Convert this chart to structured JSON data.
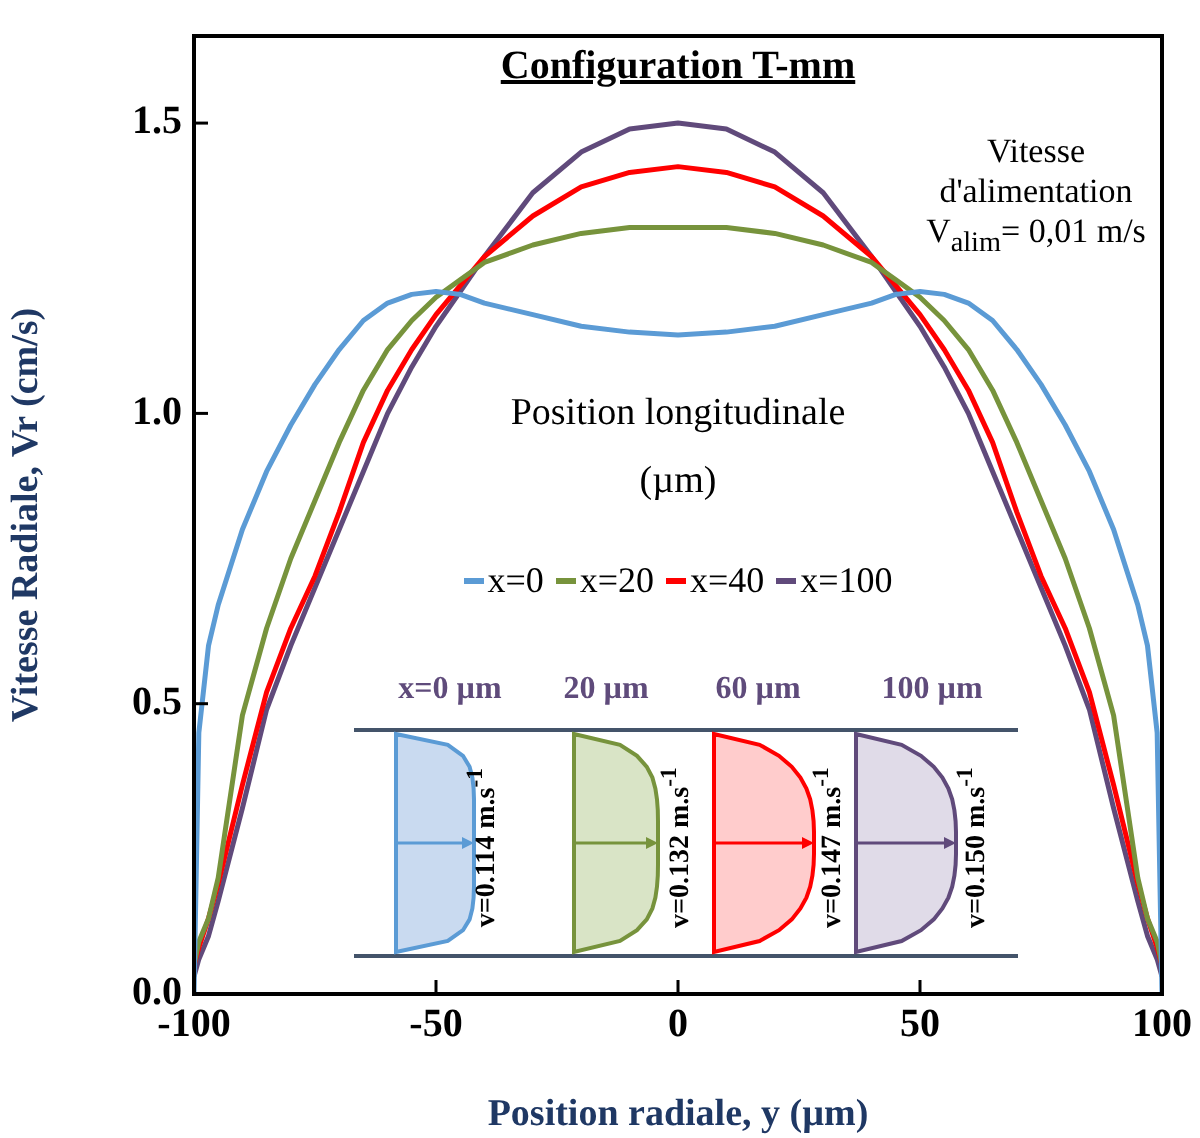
{
  "chart_data": {
    "type": "line",
    "title": "Configuration T-mm",
    "xlabel": "Position radiale, y (µm)",
    "ylabel": "Vitesse Radiale, Vr (cm/s)",
    "legend_title": "Position longitudinale (µm)",
    "legend": "center",
    "grid": false,
    "marker": "none",
    "line_style": "solid",
    "x": [
      -100,
      -99,
      -97,
      -95,
      -90,
      -85,
      -80,
      -75,
      -70,
      -65,
      -60,
      -55,
      -50,
      -45,
      -40,
      -30,
      -20,
      -10,
      0,
      10,
      20,
      30,
      40,
      45,
      50,
      55,
      60,
      65,
      70,
      75,
      80,
      85,
      90,
      95,
      97,
      99,
      100
    ],
    "xlim": [
      -100,
      100
    ],
    "xticks": [
      -100,
      -50,
      0,
      50,
      100
    ],
    "ylim": [
      0,
      1.65
    ],
    "yticks": [
      {
        "value": 0,
        "label": "0.0"
      },
      0.5,
      {
        "value": 1,
        "label": "1.0"
      },
      1.5
    ],
    "series": [
      {
        "name": "x=0",
        "color": "#5b9bd5",
        "values": [
          0,
          0.45,
          0.6,
          0.67,
          0.8,
          0.9,
          0.98,
          1.05,
          1.11,
          1.16,
          1.19,
          1.205,
          1.21,
          1.205,
          1.19,
          1.17,
          1.15,
          1.14,
          1.135,
          1.14,
          1.15,
          1.17,
          1.19,
          1.205,
          1.21,
          1.205,
          1.19,
          1.16,
          1.11,
          1.05,
          0.98,
          0.9,
          0.8,
          0.67,
          0.6,
          0.45,
          0
        ]
      },
      {
        "name": "x=20",
        "color": "#77933c",
        "values": [
          0.05,
          0.09,
          0.13,
          0.2,
          0.48,
          0.63,
          0.75,
          0.85,
          0.95,
          1.04,
          1.11,
          1.16,
          1.2,
          1.23,
          1.26,
          1.29,
          1.31,
          1.32,
          1.32,
          1.32,
          1.31,
          1.29,
          1.26,
          1.23,
          1.2,
          1.16,
          1.11,
          1.04,
          0.95,
          0.85,
          0.75,
          0.63,
          0.48,
          0.2,
          0.13,
          0.09,
          0.05
        ]
      },
      {
        "name": "x=40",
        "color": "#ff0000",
        "values": [
          0.05,
          0.08,
          0.13,
          0.19,
          0.36,
          0.52,
          0.63,
          0.72,
          0.83,
          0.95,
          1.04,
          1.11,
          1.17,
          1.22,
          1.27,
          1.34,
          1.39,
          1.415,
          1.425,
          1.415,
          1.39,
          1.34,
          1.27,
          1.22,
          1.17,
          1.11,
          1.04,
          0.95,
          0.83,
          0.72,
          0.63,
          0.52,
          0.36,
          0.19,
          0.13,
          0.08,
          0.05
        ]
      },
      {
        "name": "x=100",
        "color": "#604a7b",
        "values": [
          0.03,
          0.06,
          0.1,
          0.16,
          0.32,
          0.49,
          0.6,
          0.7,
          0.8,
          0.9,
          1.0,
          1.08,
          1.15,
          1.21,
          1.27,
          1.38,
          1.45,
          1.49,
          1.5,
          1.49,
          1.45,
          1.38,
          1.27,
          1.21,
          1.15,
          1.08,
          1.0,
          0.9,
          0.8,
          0.7,
          0.6,
          0.49,
          0.32,
          0.16,
          0.1,
          0.06,
          0.03
        ]
      }
    ],
    "annotations": [
      "Vitesse d'alimentation V$_{alim}$= 0,01 m/s",
      "x=0 µm",
      "20 µm",
      "60  µm",
      "100 µm",
      "v=0.114 m.s$^{-1}$",
      "v=0.132 m.s$^{-1}$",
      "v=0.147 m.s$^{-1}$",
      "v=0.150 m.s$^{-1}$"
    ]
  }
}
